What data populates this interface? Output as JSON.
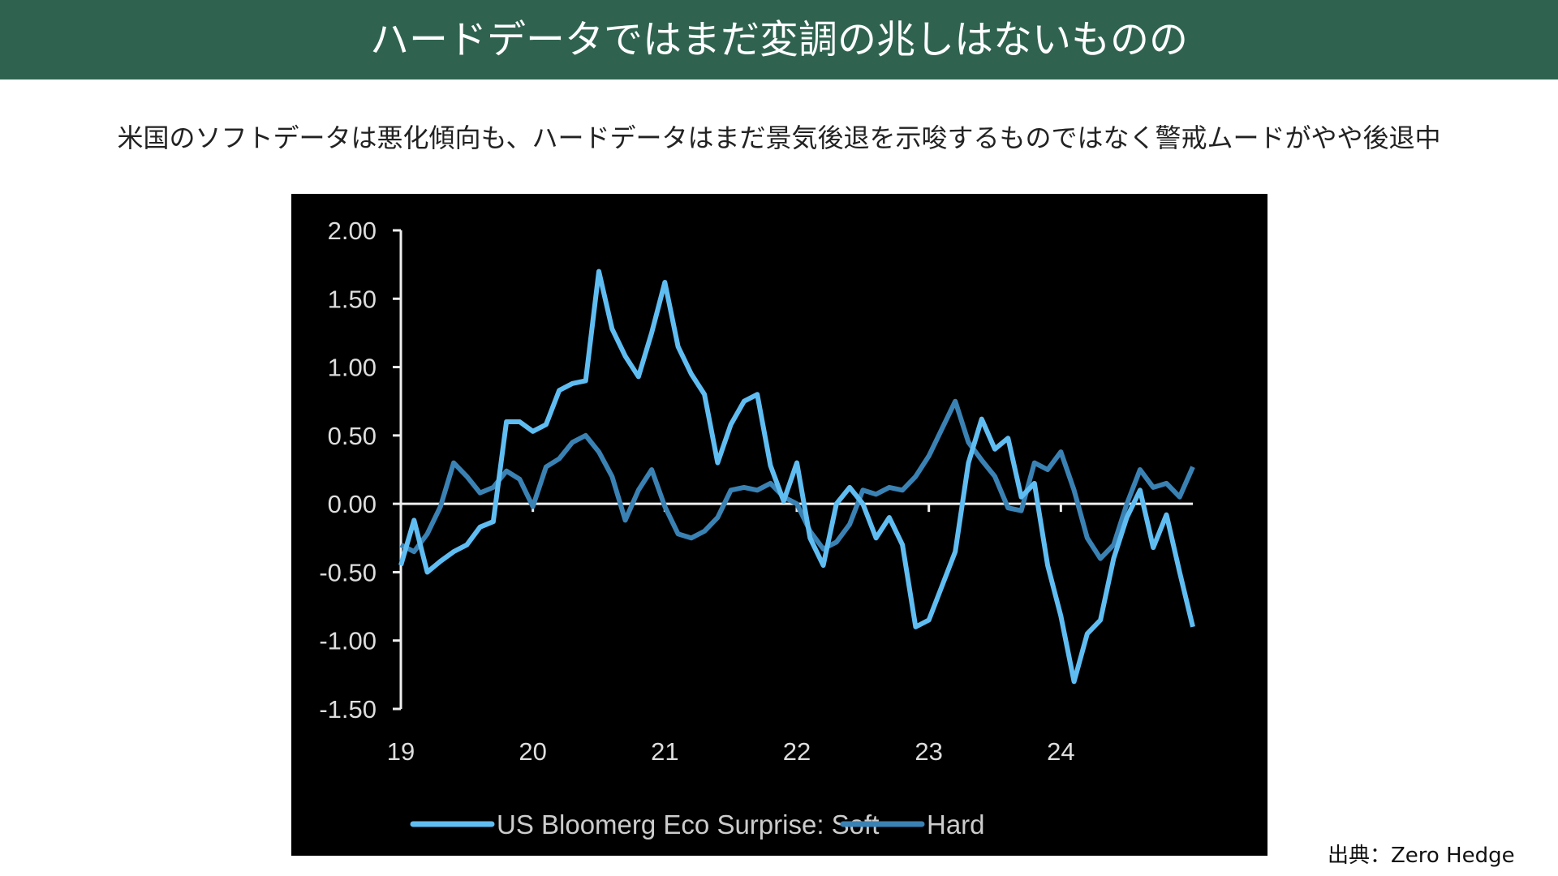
{
  "header": {
    "title": "ハードデータではまだ変調の兆しはないものの"
  },
  "subtitle": "米国のソフトデータは悪化傾向も、ハードデータはまだ景気後退を示唆するものではなく警戒ムードがやや後退中",
  "source": "出典：Zero Hedge",
  "chart_data": {
    "type": "line",
    "x": [
      19.0,
      19.1,
      19.2,
      19.3,
      19.4,
      19.5,
      19.6,
      19.7,
      19.8,
      19.9,
      20.0,
      20.1,
      20.2,
      20.3,
      20.4,
      20.5,
      20.6,
      20.7,
      20.8,
      20.9,
      21.0,
      21.1,
      21.2,
      21.3,
      21.4,
      21.5,
      21.6,
      21.7,
      21.8,
      21.9,
      22.0,
      22.1,
      22.2,
      22.3,
      22.4,
      22.5,
      22.6,
      22.7,
      22.8,
      22.9,
      23.0,
      23.1,
      23.2,
      23.3,
      23.4,
      23.5,
      23.6,
      23.7,
      23.8,
      23.9,
      24.0,
      24.1,
      24.2,
      24.3,
      24.4,
      24.5,
      24.6,
      24.7,
      24.8,
      24.9,
      25.0
    ],
    "series": [
      {
        "name": "US Bloomerg Eco Surprise: Soft",
        "color": "#5fbdf2",
        "values": [
          -0.45,
          -0.12,
          -0.5,
          -0.42,
          -0.35,
          -0.3,
          -0.17,
          -0.13,
          0.6,
          0.6,
          0.53,
          0.58,
          0.83,
          0.88,
          0.9,
          1.7,
          1.28,
          1.08,
          0.93,
          1.25,
          1.62,
          1.15,
          0.95,
          0.8,
          0.3,
          0.58,
          0.75,
          0.8,
          0.28,
          0.02,
          0.3,
          -0.25,
          -0.45,
          0.0,
          0.12,
          0.0,
          -0.25,
          -0.1,
          -0.3,
          -0.9,
          -0.85,
          -0.6,
          -0.35,
          0.3,
          0.62,
          0.4,
          0.48,
          0.05,
          0.15,
          -0.45,
          -0.82,
          -1.3,
          -0.95,
          -0.85,
          -0.4,
          -0.1,
          0.1,
          -0.32,
          -0.08,
          -0.5,
          -0.9
        ]
      },
      {
        "name": "Hard",
        "color": "#3a82b4",
        "values": [
          -0.3,
          -0.35,
          -0.22,
          -0.02,
          0.3,
          0.2,
          0.08,
          0.12,
          0.24,
          0.18,
          -0.02,
          0.27,
          0.33,
          0.45,
          0.5,
          0.38,
          0.2,
          -0.12,
          0.1,
          0.25,
          -0.02,
          -0.22,
          -0.25,
          -0.2,
          -0.1,
          0.1,
          0.12,
          0.1,
          0.15,
          0.05,
          0.0,
          -0.2,
          -0.33,
          -0.28,
          -0.15,
          0.1,
          0.07,
          0.12,
          0.1,
          0.2,
          0.35,
          0.55,
          0.75,
          0.45,
          0.32,
          0.2,
          -0.03,
          -0.05,
          0.3,
          0.25,
          0.38,
          0.1,
          -0.25,
          -0.4,
          -0.3,
          0.0,
          0.25,
          0.12,
          0.15,
          0.05,
          0.27
        ]
      }
    ],
    "xlim": [
      19,
      25
    ],
    "xticks": [
      19,
      20,
      21,
      22,
      23,
      24
    ],
    "ylim": [
      -1.5,
      2
    ],
    "yticks": [
      {
        "value": 2,
        "label": "2.00"
      },
      {
        "value": 1.5,
        "label": "1.50"
      },
      {
        "value": 1,
        "label": "1.00"
      },
      {
        "value": 0.5,
        "label": "0.50"
      },
      {
        "value": 0,
        "label": "0.00"
      },
      {
        "value": -0.5,
        "label": "-0.50"
      },
      {
        "value": -1,
        "label": "-1.00"
      },
      {
        "value": -1.5,
        "label": "-1.50"
      }
    ],
    "legend": "bottom"
  }
}
